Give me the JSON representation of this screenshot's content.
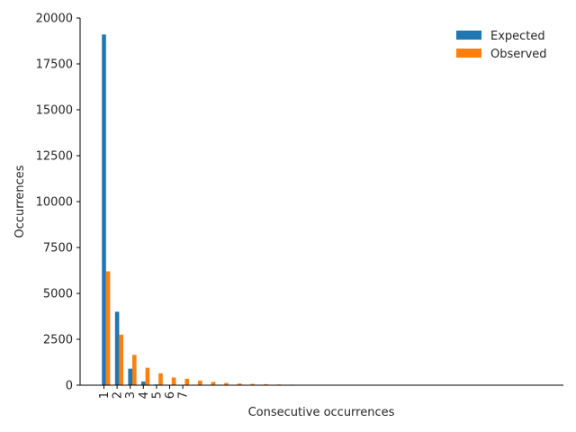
{
  "chart_data": {
    "type": "bar",
    "title": "",
    "xlabel": "Consecutive occurrences",
    "ylabel": "Occurrences",
    "ylim": [
      0,
      20000
    ],
    "yticks": [
      0,
      2500,
      5000,
      7500,
      10000,
      12500,
      15000,
      17500,
      20000
    ],
    "xtick_labels": [
      "1",
      "2",
      "3",
      "4",
      "5",
      "6",
      "7"
    ],
    "n_groups": 35,
    "legend_position": "top-right",
    "grid": false,
    "series": [
      {
        "name": "Expected",
        "color": "#1f77b4",
        "values": [
          19100,
          4000,
          900,
          200,
          40,
          8,
          2,
          0,
          0,
          0,
          0,
          0,
          0,
          0,
          0,
          0,
          0,
          0,
          0,
          0,
          0,
          0,
          0,
          0,
          0,
          0,
          0,
          0,
          0,
          0,
          0,
          0,
          0,
          0,
          0
        ]
      },
      {
        "name": "Observed",
        "color": "#ff7f0e",
        "values": [
          6200,
          2750,
          1650,
          950,
          650,
          420,
          350,
          250,
          180,
          120,
          90,
          70,
          55,
          40,
          30,
          25,
          20,
          15,
          12,
          10,
          8,
          0,
          0,
          0,
          0,
          0,
          0,
          0,
          0,
          0,
          0,
          0,
          0,
          0,
          0
        ]
      }
    ]
  }
}
